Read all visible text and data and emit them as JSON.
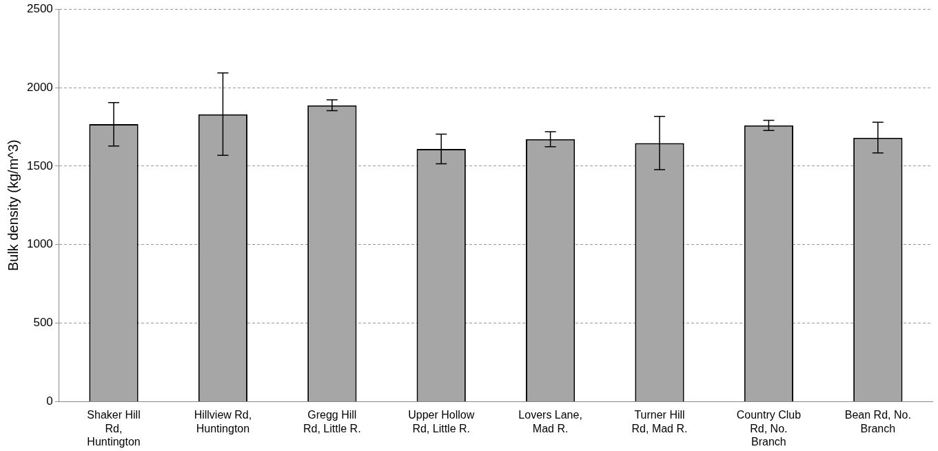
{
  "chart_data": {
    "type": "bar",
    "ylabel": "Bulk density (kg/m^3)",
    "categories": [
      "Shaker Hill Rd, Huntington",
      "Hillview Rd, Huntington",
      "Gregg Hill Rd, Little R.",
      "Upper Hollow Rd, Little R.",
      "Lovers Lane, Mad R.",
      "Turner Hill Rd, Mad R.",
      "Country Club Rd,  No. Branch",
      "Bean Rd, No. Branch"
    ],
    "values": [
      1767,
      1830,
      1887,
      1609,
      1672,
      1647,
      1760,
      1681
    ],
    "errors": [
      [
        1628,
        1905
      ],
      [
        1569,
        2094
      ],
      [
        1853,
        1922
      ],
      [
        1515,
        1704
      ],
      [
        1624,
        1719
      ],
      [
        1477,
        1817
      ],
      [
        1727,
        1792
      ],
      [
        1584,
        1779
      ]
    ],
    "color": "#a6a6a6",
    "ylim": [
      0,
      2500
    ],
    "yticks": [
      0,
      500,
      1000,
      1500,
      2000,
      2500
    ],
    "grid": "y"
  }
}
